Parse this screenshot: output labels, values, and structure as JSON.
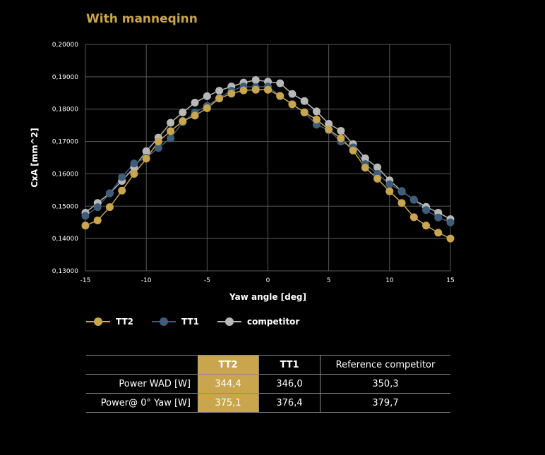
{
  "title": "With manneqinn",
  "chart_data": {
    "type": "line",
    "xlabel": "Yaw angle [deg]",
    "ylabel": "CxA [mm^2]",
    "xlim": [
      -15,
      15
    ],
    "ylim": [
      0.13,
      0.2
    ],
    "x_ticks": [
      "-15",
      "-10",
      "-5",
      "0",
      "5",
      "10",
      "15"
    ],
    "y_ticks": [
      "0,13000",
      "0,14000",
      "0,15000",
      "0,16000",
      "0,17000",
      "0,18000",
      "0,19000",
      "0,20000"
    ],
    "grid": true,
    "x": [
      -15,
      -14,
      -13,
      -12,
      -11,
      -10,
      -9,
      -8,
      -7,
      -6,
      -5,
      -4,
      -3,
      -2,
      -1,
      0,
      1,
      2,
      3,
      4,
      5,
      6,
      7,
      8,
      9,
      10,
      11,
      12,
      13,
      14,
      15
    ],
    "series": [
      {
        "name": "TT2",
        "color": "#c9a54e",
        "values": [
          0.144,
          0.1456,
          0.1497,
          0.1548,
          0.16,
          0.1647,
          0.17,
          0.1732,
          0.1763,
          0.178,
          0.1803,
          0.1833,
          0.1848,
          0.1858,
          0.186,
          0.186,
          0.1841,
          0.1815,
          0.179,
          0.1768,
          0.1737,
          0.171,
          0.1672,
          0.1619,
          0.1585,
          0.1546,
          0.151,
          0.1466,
          0.144,
          0.1418,
          0.14
        ]
      },
      {
        "name": "TT1",
        "color": "#3d5d7a",
        "values": [
          0.147,
          0.1497,
          0.154,
          0.159,
          0.1632,
          0.165,
          0.168,
          0.171,
          0.176,
          0.179,
          0.181,
          0.1835,
          0.1857,
          0.187,
          0.1868,
          0.187,
          0.184,
          0.1815,
          0.179,
          0.1752,
          0.1735,
          0.17,
          0.1682,
          0.163,
          0.16,
          0.1568,
          0.1547,
          0.152,
          0.1488,
          0.1465,
          0.145
        ]
      },
      {
        "name": "competitor",
        "color": "#b8b8b8",
        "values": [
          0.148,
          0.151,
          0.154,
          0.1578,
          0.162,
          0.167,
          0.1712,
          0.1758,
          0.179,
          0.182,
          0.184,
          0.1857,
          0.187,
          0.1882,
          0.189,
          0.1885,
          0.188,
          0.1847,
          0.1825,
          0.1793,
          0.1755,
          0.1733,
          0.1692,
          0.1648,
          0.162,
          0.158,
          0.1546,
          0.152,
          0.1498,
          0.148,
          0.146
        ]
      }
    ]
  },
  "table": {
    "headers": [
      "",
      "TT2",
      "TT1",
      "Reference competitor"
    ],
    "rows": [
      {
        "label": "Power WAD [W]",
        "tt2": "344,4",
        "tt1": "346,0",
        "ref": "350,3"
      },
      {
        "label": "Power@ 0° Yaw [W]",
        "tt2": "375,1",
        "tt1": "376,4",
        "ref": "379,7"
      }
    ]
  }
}
